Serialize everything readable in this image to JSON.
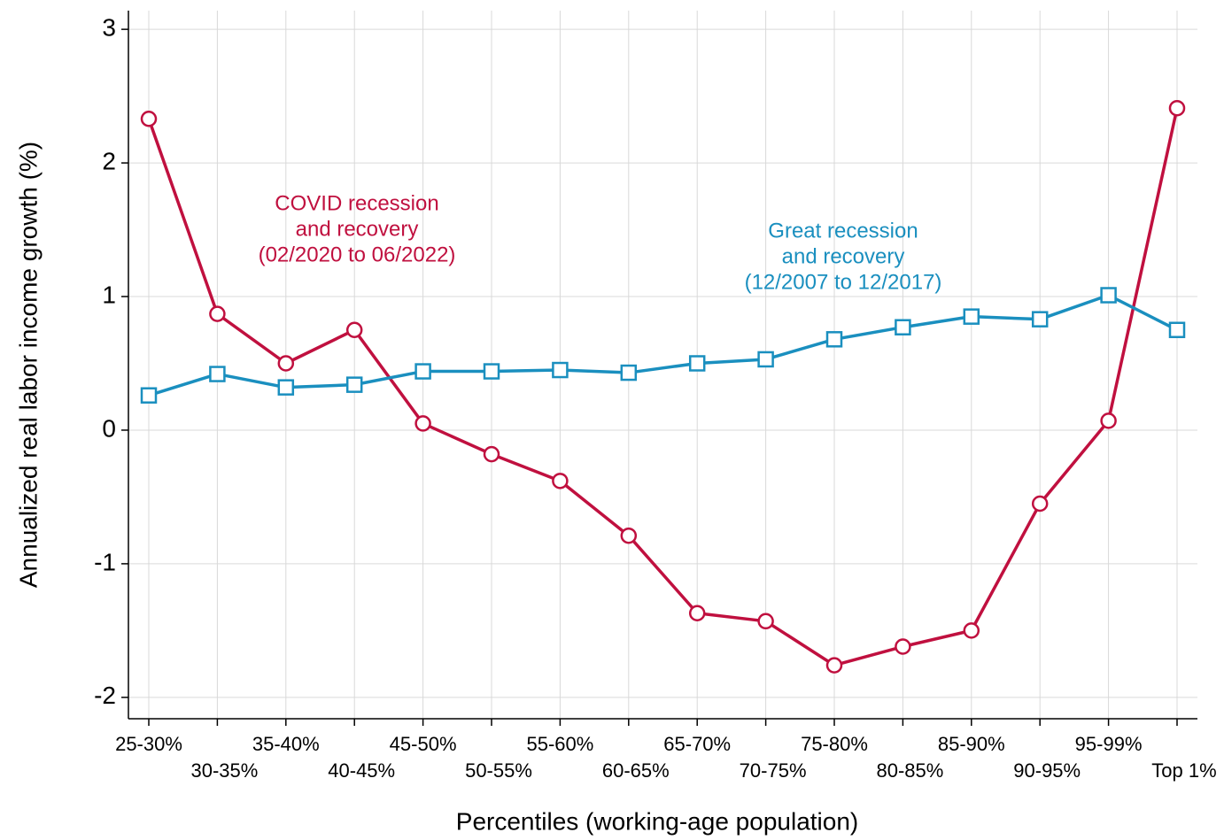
{
  "chart_data": {
    "type": "line",
    "x_label": "Percentiles (working-age population)",
    "y_label": "Annualized real labor income growth (%)",
    "categories": [
      "25-30%",
      "30-35%",
      "35-40%",
      "40-45%",
      "45-50%",
      "50-55%",
      "55-60%",
      "60-65%",
      "65-70%",
      "70-75%",
      "75-80%",
      "80-85%",
      "85-90%",
      "90-95%",
      "95-99%",
      "Top 1%"
    ],
    "series": [
      {
        "color": "#c0103f",
        "marker": "circle",
        "values": [
          2.33,
          0.87,
          0.5,
          0.75,
          0.05,
          -0.18,
          -0.38,
          -0.79,
          -1.37,
          -1.43,
          -1.76,
          -1.62,
          -1.5,
          -0.55,
          0.07,
          2.41
        ]
      },
      {
        "color": "#1a8fbf",
        "marker": "square",
        "values": [
          0.26,
          0.42,
          0.32,
          0.34,
          0.44,
          0.44,
          0.45,
          0.43,
          0.5,
          0.53,
          0.68,
          0.77,
          0.85,
          0.83,
          1.01,
          0.75
        ]
      }
    ],
    "annotations": [
      {
        "color": "#c0103f",
        "lines": [
          "COVID recession",
          "and recovery",
          "(02/2020 to 06/2022)"
        ]
      },
      {
        "color": "#1a8fbf",
        "lines": [
          "Great recession",
          "and recovery",
          "(12/2007 to 12/2017)"
        ]
      }
    ],
    "ylim": [
      -2.16,
      3.14
    ],
    "yticks": [
      -2,
      -1,
      0,
      1,
      2,
      3
    ],
    "grid": true
  }
}
